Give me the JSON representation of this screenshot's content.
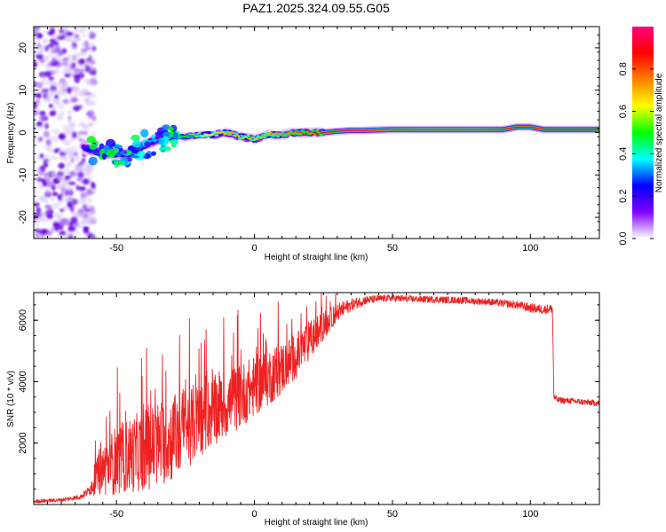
{
  "title": "PAZ1.2025.324.09.55.G05",
  "chart_data": [
    {
      "type": "heatmap",
      "xlabel": "Height of straight line (km)",
      "ylabel": "Frequency (Hz)",
      "xlim": [
        -80,
        125
      ],
      "ylim": [
        -25,
        25
      ],
      "xticks": [
        -50,
        0,
        50,
        100
      ],
      "xtick_labels": [
        "-50",
        "0",
        "50",
        "100"
      ],
      "yticks": [
        -20,
        -10,
        0,
        10,
        20
      ],
      "ytick_labels": [
        "-20",
        "-10",
        "0",
        "10",
        "20"
      ],
      "ridge": {
        "heights": [
          -62,
          -55,
          -50,
          -45,
          -40,
          -35,
          -30,
          -25,
          -20,
          -15,
          -10,
          -5,
          0,
          5,
          10,
          15,
          20,
          25,
          30,
          35,
          40,
          45,
          50,
          55,
          60,
          65,
          70,
          75,
          80,
          85,
          90,
          95,
          100,
          105,
          110,
          115,
          120,
          125
        ],
        "frequency_hz": [
          -3.5,
          -5,
          -5,
          -5,
          -3,
          -1.5,
          -1,
          -1,
          -0.5,
          -0.5,
          0,
          -1,
          -1.5,
          -0.5,
          -0.5,
          0,
          0,
          0,
          0.3,
          0.5,
          0.5,
          0.6,
          0.7,
          0.7,
          0.7,
          0.7,
          0.7,
          0.7,
          0.7,
          0.7,
          0.7,
          1.3,
          1.3,
          0.7,
          0.7,
          0.7,
          0.7,
          0.7
        ],
        "amplitude": [
          0.25,
          0.3,
          0.3,
          0.35,
          0.3,
          0.35,
          0.4,
          0.5,
          0.6,
          0.65,
          0.7,
          0.7,
          0.7,
          0.7,
          0.75,
          0.8,
          0.85,
          0.9,
          0.9,
          0.92,
          0.92,
          0.95,
          0.95,
          0.95,
          0.96,
          0.96,
          0.96,
          0.96,
          0.96,
          0.95,
          0.92,
          0.9,
          0.9,
          0.9,
          0.9,
          0.9,
          0.9,
          0.9
        ]
      },
      "noise_region_km": [
        -80,
        -58
      ],
      "colorbar": {
        "label": "Normalized spectral amplitude",
        "range": [
          0,
          1
        ],
        "ticks": [
          0.0,
          0.2,
          0.4,
          0.6,
          0.8
        ],
        "tick_labels": [
          "0.0",
          "0.2",
          "0.4",
          "0.6",
          "0.8"
        ],
        "colors": [
          "#ffffff",
          "#8000ff",
          "#0000ff",
          "#00ffff",
          "#00ff00",
          "#ffff00",
          "#ff8000",
          "#ff0000",
          "#ff0080"
        ]
      }
    },
    {
      "type": "line",
      "xlabel": "Height of straight line (km)",
      "ylabel": "SNR (10 * v/v)",
      "xlim": [
        -80,
        125
      ],
      "ylim": [
        0,
        6900
      ],
      "xticks": [
        -50,
        0,
        50,
        100
      ],
      "xtick_labels": [
        "-50",
        "0",
        "50",
        "100"
      ],
      "yticks": [
        2000,
        4000,
        6000
      ],
      "ytick_labels": [
        "2000",
        "4000",
        "6000"
      ],
      "series": [
        {
          "name": "SNR",
          "color": "#ee2222",
          "x": [
            -80,
            -70,
            -63,
            -60,
            -58,
            -55,
            -50,
            -45,
            -40,
            -35,
            -30,
            -25,
            -20,
            -15,
            -10,
            -5,
            0,
            5,
            10,
            15,
            20,
            25,
            30,
            35,
            40,
            45,
            50,
            55,
            60,
            65,
            70,
            75,
            80,
            85,
            90,
            95,
            100,
            105,
            108,
            108.5,
            110,
            115,
            120,
            125
          ],
          "y": [
            100,
            150,
            250,
            450,
            800,
            1100,
            1400,
            1550,
            1700,
            1900,
            2100,
            2400,
            2700,
            3000,
            3200,
            3500,
            3800,
            4100,
            4400,
            4800,
            5300,
            5800,
            6250,
            6500,
            6650,
            6700,
            6720,
            6700,
            6680,
            6680,
            6660,
            6650,
            6620,
            6600,
            6550,
            6500,
            6400,
            6350,
            6380,
            3500,
            3400,
            3370,
            3330,
            3300
          ],
          "noise_amplitude": [
            60,
            60,
            80,
            150,
            500,
            900,
            1200,
            1300,
            1400,
            1500,
            1500,
            1400,
            1300,
            1200,
            1150,
            1100,
            1050,
            1000,
            900,
            800,
            700,
            500,
            300,
            200,
            140,
            120,
            110,
            110,
            110,
            110,
            110,
            110,
            110,
            110,
            120,
            130,
            150,
            150,
            150,
            100,
            100,
            100,
            100,
            100
          ]
        }
      ]
    }
  ]
}
